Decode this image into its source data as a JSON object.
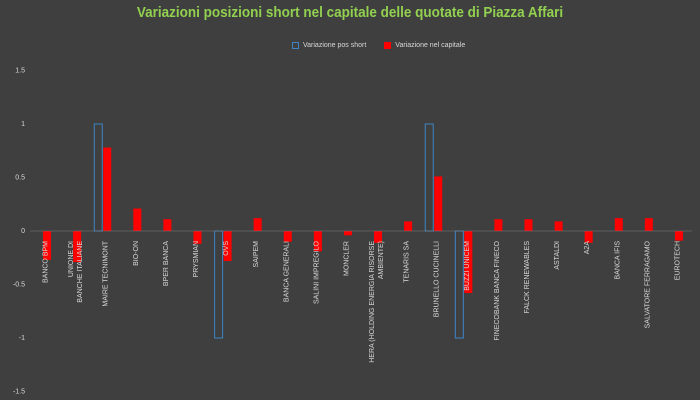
{
  "chart_data": {
    "type": "bar",
    "title": "Variazioni posizioni short nel capitale delle quotate di Piazza Affari",
    "ylim": [
      -1.5,
      1.5
    ],
    "yticks": [
      "1.5",
      "1",
      "0.5",
      "0",
      "-0.5",
      "-1",
      "-1.5"
    ],
    "ytick_values": [
      1.5,
      1,
      0.5,
      0,
      -0.5,
      -1,
      -1.5
    ],
    "categories": [
      "BANCO BPM",
      "UNIONE DI BANCHE ITALIANE",
      "MAIRE TECNIMONT",
      "BIO-ON",
      "BPER BANCA",
      "PRYSMIAN",
      "OVS",
      "SAIPEM",
      "BANCA GENERALI",
      "SALINI IMPREGILO",
      "MONCLER",
      "HERA (HOLDING ENERGIA RISORSE AMBIENTE)",
      "TENARIS SA",
      "BRUNELLO CUCINELLI",
      "BUZZI UNICEM",
      "FINECOBANK BANCA FINECO",
      "FALCK RENEWABLES",
      "ASTALDI",
      "A2A",
      "BANCA IFIS",
      "SALVATORE FERRAGAMO",
      "EUROTECH"
    ],
    "series": [
      {
        "name": "Variazione pos short",
        "color": "#3d85c6",
        "style": "outline",
        "values": [
          0,
          0,
          1,
          0,
          0,
          0,
          -1,
          0,
          0,
          0,
          0,
          0,
          0,
          1,
          -1,
          0,
          0,
          0,
          0,
          0,
          0,
          0
        ]
      },
      {
        "name": "Variazione nel capitale",
        "color": "#ff0000",
        "style": "filled",
        "values": [
          -0.27,
          -0.29,
          0.78,
          0.21,
          0.11,
          -0.12,
          -0.28,
          0.12,
          -0.1,
          -0.19,
          -0.04,
          -0.11,
          0.09,
          0.51,
          -0.58,
          0.11,
          0.11,
          0.09,
          -0.11,
          0.12,
          0.12,
          -0.09
        ]
      }
    ],
    "grid": false,
    "legend_position": "top-center",
    "title_color": "#92d050",
    "axis_text_color": "#d9d9d9",
    "background": "#3f3f3f"
  }
}
